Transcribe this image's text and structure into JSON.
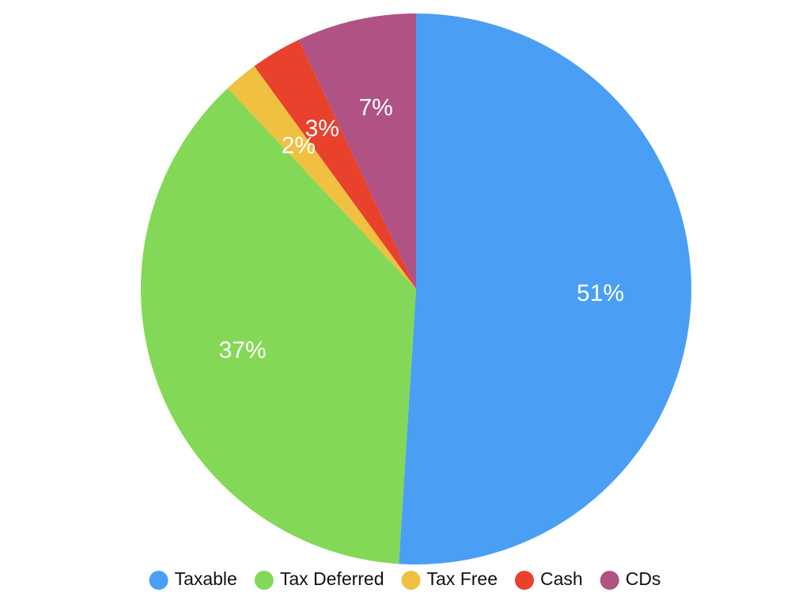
{
  "chart_data": {
    "type": "pie",
    "categories": [
      "Taxable",
      "Tax Deferred",
      "Tax Free",
      "Cash",
      "CDs"
    ],
    "values": [
      51,
      37,
      2,
      3,
      7
    ],
    "value_labels": [
      "51%",
      "37%",
      "2%",
      "3%",
      "7%"
    ],
    "colors": [
      "#4a9ff5",
      "#84d857",
      "#f0c040",
      "#e8412c",
      "#b05284"
    ],
    "legend": "bottom"
  }
}
